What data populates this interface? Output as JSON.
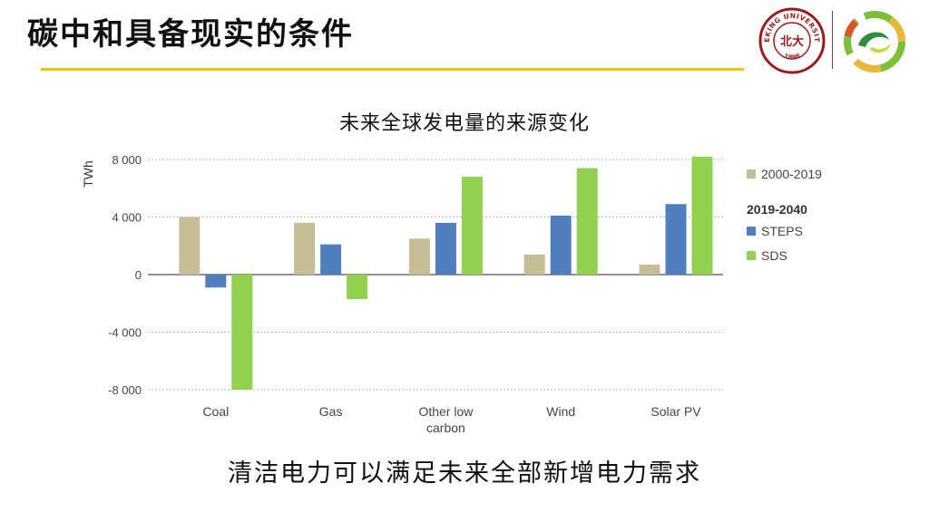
{
  "slide": {
    "title": "碳中和具备现实的条件",
    "footer": "清洁电力可以满足未来全部新增电力需求"
  },
  "logos": {
    "university_seal_text": "PEKING UNIVERSITY",
    "university_seal_year": "1898",
    "university_seal_glyph": "北大",
    "seal_color": "#9b1b1e"
  },
  "chart_data": {
    "type": "bar",
    "title": "未来全球发电量的来源变化",
    "ylabel": "TWh",
    "xlabel": "",
    "ylim": [
      -8000,
      8000
    ],
    "yticks": [
      8000,
      4000,
      0,
      -4000,
      -8000
    ],
    "ytick_labels": [
      "8 000",
      "4 000",
      "0",
      "-4 000",
      "-8 000"
    ],
    "categories": [
      [
        "Coal"
      ],
      [
        "Gas"
      ],
      [
        "Other low",
        "carbon"
      ],
      [
        "Wind"
      ],
      [
        "Solar PV"
      ]
    ],
    "series": [
      {
        "name": "2000-2019",
        "color": "#c5bd95",
        "values": [
          4000,
          3600,
          2500,
          1400,
          700
        ]
      },
      {
        "name": "STEPS",
        "color": "#4f7fbf",
        "values": [
          -900,
          2100,
          3600,
          4100,
          4900
        ]
      },
      {
        "name": "SDS",
        "color": "#92d050",
        "values": [
          -8000,
          -1700,
          6800,
          7400,
          8200
        ]
      }
    ],
    "legend": {
      "placement": "right",
      "group_heading": "2019-2040"
    }
  }
}
